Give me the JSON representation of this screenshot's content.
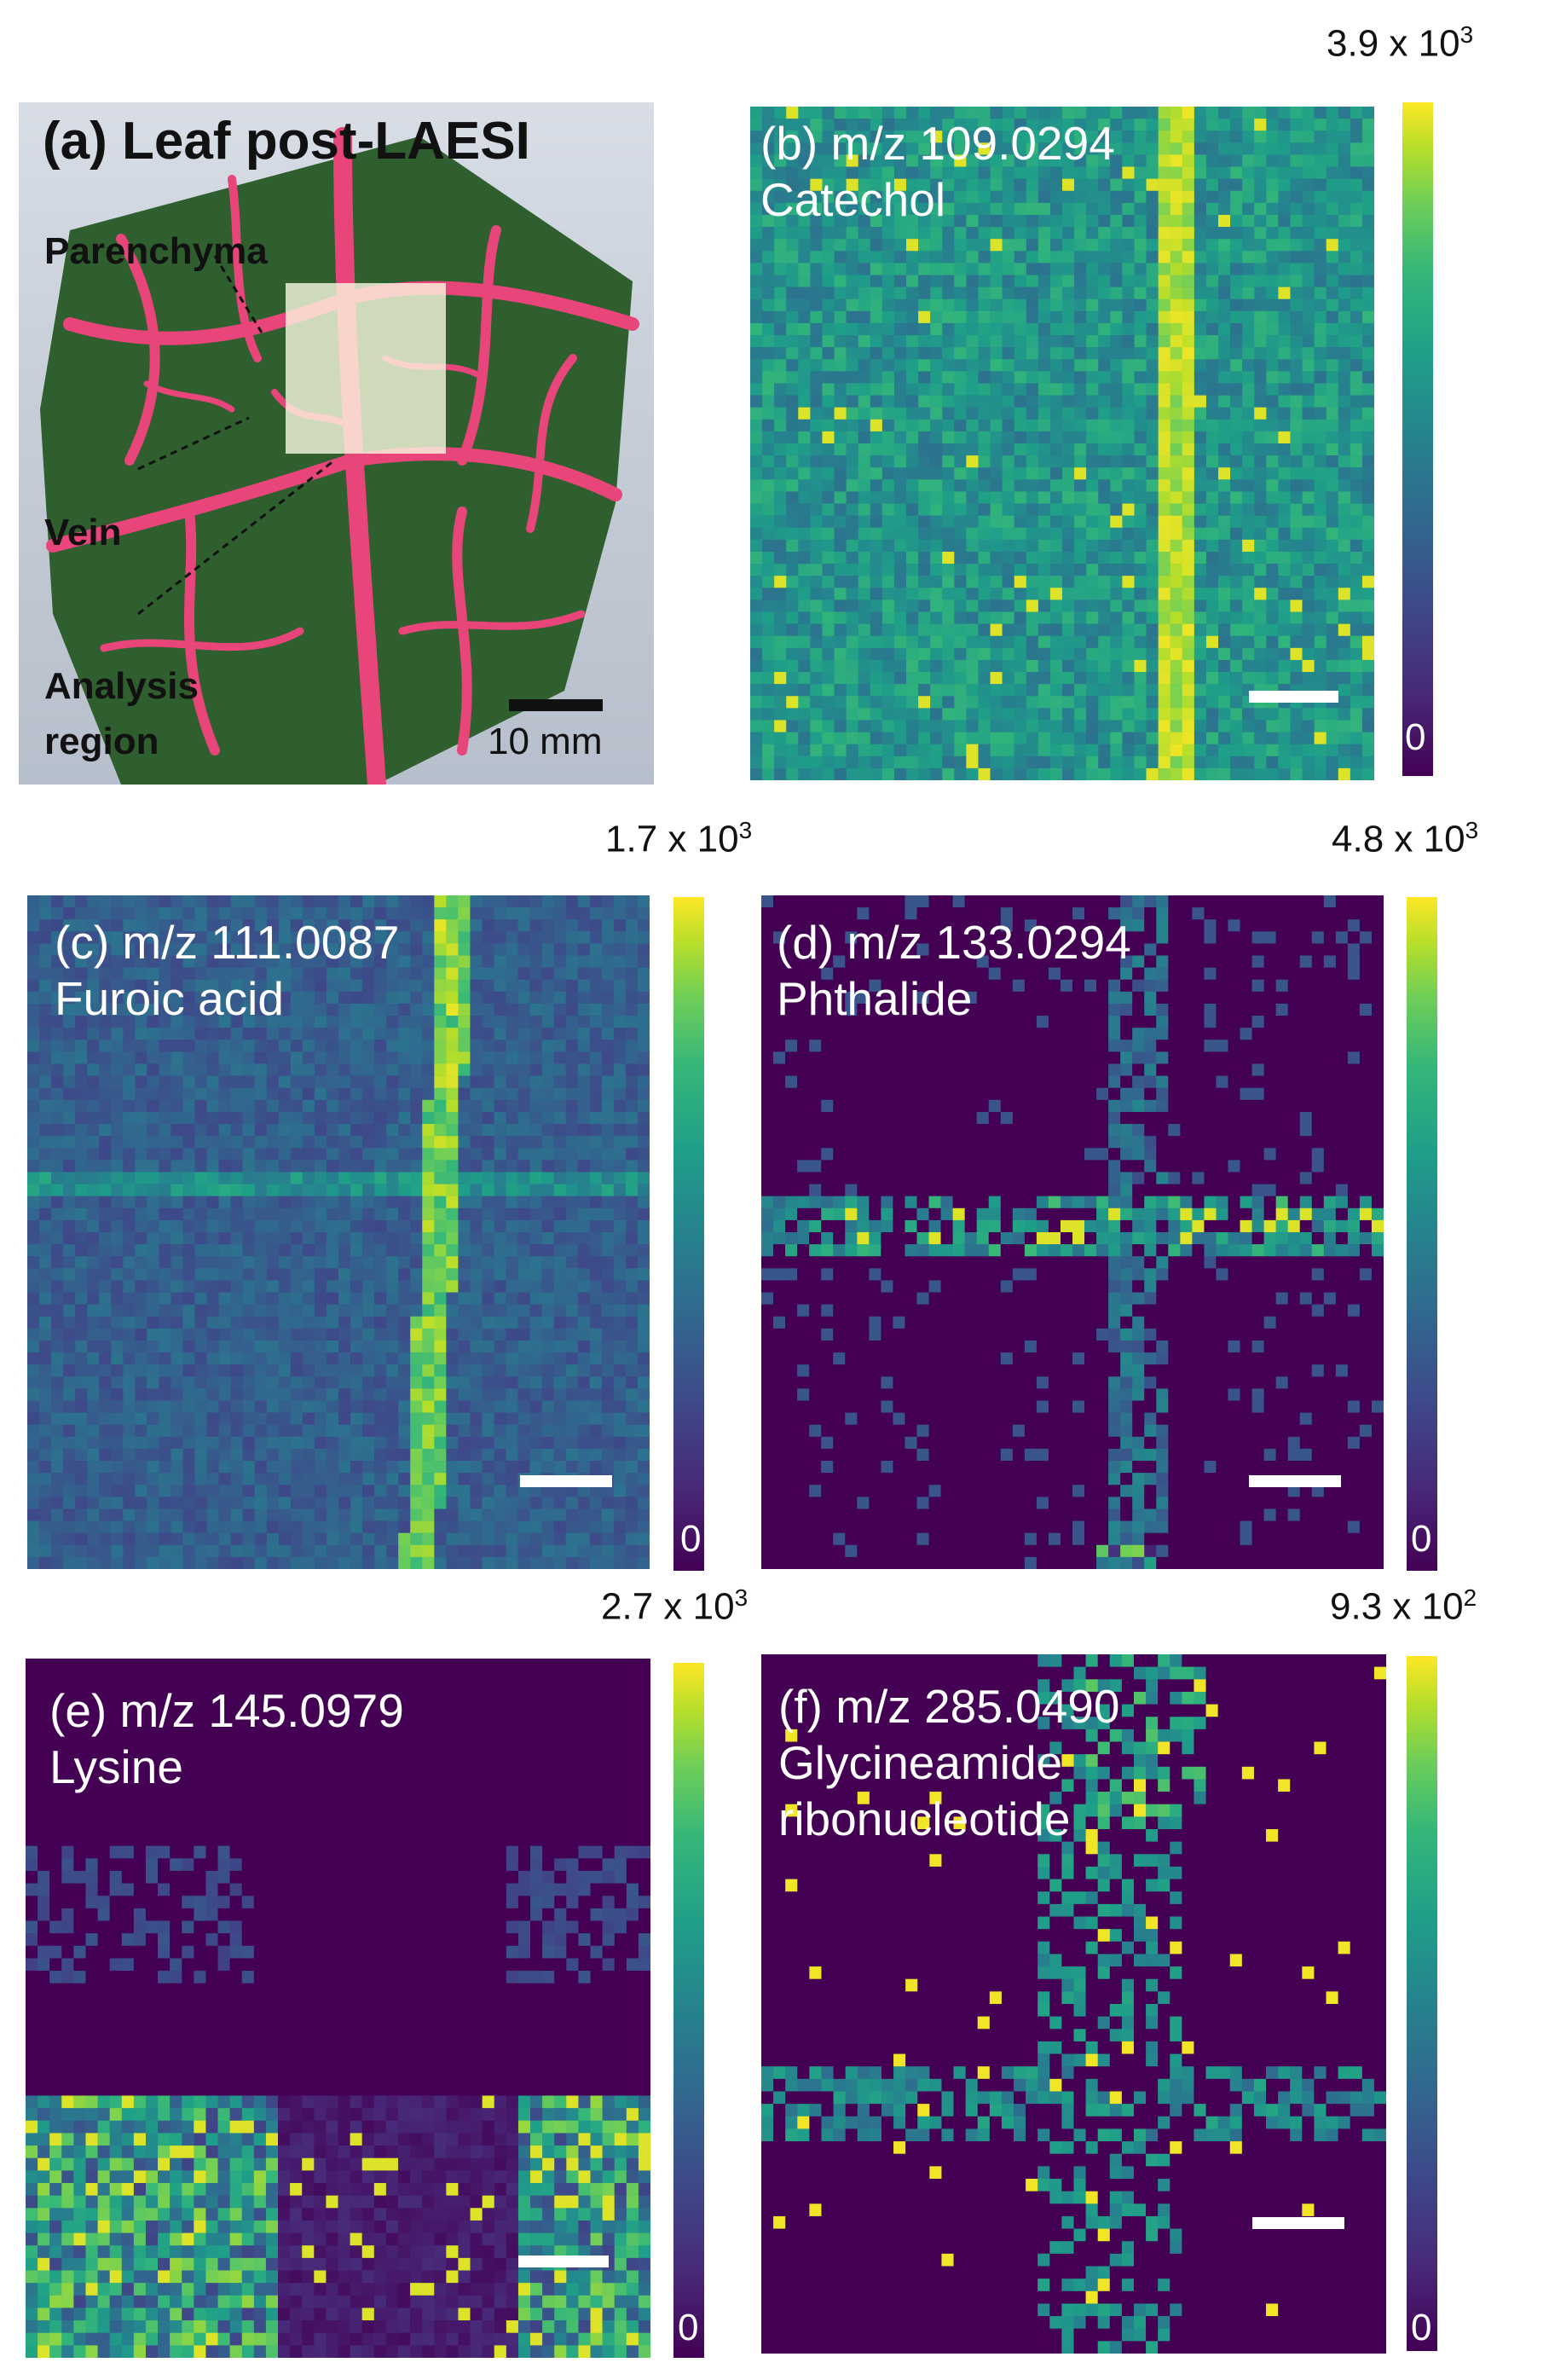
{
  "panel_a": {
    "title": "(a) Leaf post-LAESI",
    "labels": {
      "parenchyma": "Parenchyma",
      "vein": "Vein",
      "analysis_line1": "Analysis",
      "analysis_line2": "region"
    },
    "scalebar_label": "10 mm"
  },
  "panels": [
    {
      "id": "b",
      "label_line1": "(b) m/z 109.0294",
      "label_line2": "Catechol",
      "label_line3": "",
      "cmax": "3.9 x 10",
      "cmax_exp": "3",
      "cmin": "0",
      "pattern": "catechol"
    },
    {
      "id": "c",
      "label_line1": "(c) m/z 111.0087",
      "label_line2": "Furoic acid",
      "label_line3": "",
      "cmax": "1.7 x 10",
      "cmax_exp": "3",
      "cmin": "0",
      "pattern": "furoic"
    },
    {
      "id": "d",
      "label_line1": "(d) m/z 133.0294",
      "label_line2": "Phthalide",
      "label_line3": "",
      "cmax": "4.8 x 10",
      "cmax_exp": "3",
      "cmin": "0",
      "pattern": "phthalide"
    },
    {
      "id": "e",
      "label_line1": "(e) m/z 145.0979",
      "label_line2": "Lysine",
      "label_line3": "",
      "cmax": "2.7 x 10",
      "cmax_exp": "3",
      "cmin": "0",
      "pattern": "lysine"
    },
    {
      "id": "f",
      "label_line1": "(f) m/z 285.0490",
      "label_line2": "Glycineamide",
      "label_line3": "ribonucleotide",
      "cmax": "9.3 x 10",
      "cmax_exp": "2",
      "cmin": "0",
      "pattern": "gar"
    }
  ],
  "colormap": "viridis",
  "colors": {
    "low": "#440154",
    "high": "#fde725",
    "vein": "#e8457a",
    "leaf": "#2f5e2f"
  }
}
